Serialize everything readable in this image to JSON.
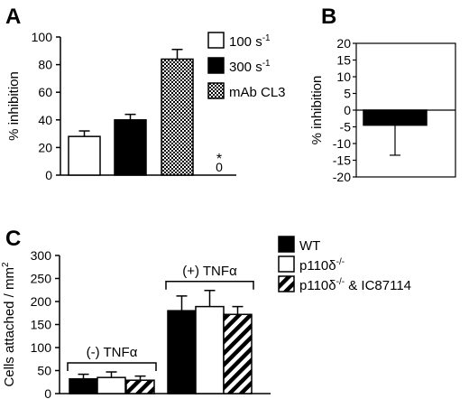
{
  "chart_data": [
    {
      "panel": "A",
      "type": "bar",
      "ylabel": "% inhibition",
      "ylim": [
        0,
        100
      ],
      "yticks": [
        0,
        20,
        40,
        60,
        80,
        100
      ],
      "categories": [
        "100 s-1",
        "300 s-1",
        "mAb CL3",
        "*"
      ],
      "series": [
        {
          "name": "100 s-1",
          "value": 28,
          "error": 4,
          "color": "#ffffff"
        },
        {
          "name": "300 s-1",
          "value": 40,
          "error": 4,
          "color": "#000000"
        },
        {
          "name": "mAb CL3",
          "value": 84,
          "error": 7,
          "color": "crosshatch"
        },
        {
          "name": "*",
          "value": 0,
          "error": 0,
          "color": "#ffffff"
        }
      ],
      "annotations": [
        "*",
        "0"
      ],
      "legend": {
        "placement": "top-right",
        "entries": [
          {
            "label": "100 s",
            "sup": "-1",
            "fill": "white"
          },
          {
            "label": "300 s",
            "sup": "-1",
            "fill": "black"
          },
          {
            "label": "mAb CL3",
            "sup": "",
            "fill": "crosshatch"
          }
        ]
      }
    },
    {
      "panel": "B",
      "type": "bar",
      "ylabel": "% inhibition",
      "ylim": [
        -20,
        20
      ],
      "yticks": [
        20,
        15,
        10,
        5,
        0,
        -5,
        -10,
        -15,
        -20
      ],
      "series": [
        {
          "name": "",
          "value": -4.5,
          "error": 9,
          "color": "#000000"
        }
      ]
    },
    {
      "panel": "C",
      "type": "bar",
      "ylabel": "Cells attached / mm",
      "ylabel_sup": "2",
      "ylim": [
        0,
        300
      ],
      "yticks": [
        0,
        50,
        100,
        150,
        200,
        250,
        300
      ],
      "groups": [
        {
          "label": "(-) TNF",
          "greek": "α",
          "values": [
            32,
            35,
            29
          ],
          "errors": [
            10,
            12,
            9
          ]
        },
        {
          "label": "(+) TNF",
          "greek": "α",
          "values": [
            180,
            189,
            172
          ],
          "errors": [
            32,
            35,
            17
          ]
        }
      ],
      "legend": {
        "placement": "top-right",
        "entries": [
          {
            "label": "WT",
            "sup": "",
            "suffix": "",
            "fill": "black"
          },
          {
            "label": "p110δ",
            "sup": "-/-",
            "suffix": "",
            "fill": "white"
          },
          {
            "label": "p110δ",
            "sup": "-/-",
            "suffix": " & IC87114",
            "fill": "hatch"
          }
        ]
      }
    }
  ]
}
